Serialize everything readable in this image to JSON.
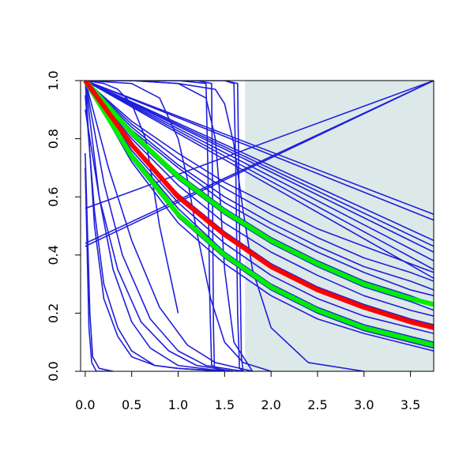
{
  "chart_data": {
    "type": "line",
    "title": "",
    "xlabel": "",
    "ylabel": "",
    "xlim": [
      -0.05,
      3.75
    ],
    "ylim": [
      0.0,
      1.0
    ],
    "grid": false,
    "legend": "none",
    "x_ticks": [
      "0.0",
      "0.5",
      "1.0",
      "1.5",
      "2.0",
      "2.5",
      "3.0",
      "3.5"
    ],
    "y_ticks": [
      "0.0",
      "0.2",
      "0.4",
      "0.6",
      "0.8",
      "1.0"
    ],
    "shaded_region": {
      "x": [
        1.72,
        3.75
      ],
      "y": [
        0.0,
        1.0
      ],
      "color": "#dde9e9"
    },
    "colors": {
      "blue": "#1f1fdd",
      "red": "#ff0000",
      "green": "#00ee00"
    },
    "series": [
      {
        "x": [
          0,
          3.75
        ],
        "y": [
          1.0,
          0.54
        ],
        "color": "#1f1fdd"
      },
      {
        "x": [
          0,
          3.75
        ],
        "y": [
          1.0,
          0.52
        ],
        "color": "#1f1fdd"
      },
      {
        "x": [
          0,
          3.75
        ],
        "y": [
          1.0,
          0.45
        ],
        "color": "#1f1fdd"
      },
      {
        "x": [
          0,
          3.75
        ],
        "y": [
          1.0,
          0.43
        ],
        "color": "#1f1fdd"
      },
      {
        "x": [
          0,
          3.75
        ],
        "y": [
          1.0,
          0.41
        ],
        "color": "#1f1fdd"
      },
      {
        "x": [
          0,
          3.75
        ],
        "y": [
          1.0,
          0.38
        ],
        "color": "#1f1fdd"
      },
      {
        "x": [
          0,
          3.75
        ],
        "y": [
          1.0,
          0.35
        ],
        "color": "#1f1fdd"
      },
      {
        "x": [
          0,
          3.75
        ],
        "y": [
          1.0,
          0.32
        ],
        "color": "#1f1fdd"
      },
      {
        "x": [
          0,
          3.75
        ],
        "y": [
          0.56,
          1.0
        ],
        "color": "#1f1fdd"
      },
      {
        "x": [
          0,
          3.75
        ],
        "y": [
          0.44,
          1.0
        ],
        "color": "#1f1fdd"
      },
      {
        "x": [
          0,
          3.75
        ],
        "y": [
          0.43,
          1.0
        ],
        "color": "#1f1fdd"
      },
      {
        "x": [
          0,
          0.5,
          1.0,
          1.5,
          2.0,
          2.5,
          3.0,
          3.5,
          3.75
        ],
        "y": [
          1.0,
          0.86,
          0.75,
          0.65,
          0.57,
          0.49,
          0.43,
          0.37,
          0.34
        ],
        "color": "#1f1fdd"
      },
      {
        "x": [
          0,
          0.5,
          1.0,
          1.5,
          2.0,
          2.5,
          3.0,
          3.5,
          3.75
        ],
        "y": [
          1.0,
          0.85,
          0.73,
          0.63,
          0.54,
          0.46,
          0.39,
          0.34,
          0.31
        ],
        "color": "#1f1fdd"
      },
      {
        "x": [
          0,
          0.5,
          1.0,
          1.5,
          2.0,
          2.5,
          3.0,
          3.5,
          3.75
        ],
        "y": [
          1.0,
          0.84,
          0.71,
          0.6,
          0.51,
          0.43,
          0.36,
          0.31,
          0.28
        ],
        "color": "#1f1fdd"
      },
      {
        "x": [
          0,
          0.5,
          1.0,
          1.5,
          2.0,
          2.5,
          3.0,
          3.5,
          3.75
        ],
        "y": [
          1.0,
          0.83,
          0.7,
          0.58,
          0.49,
          0.41,
          0.34,
          0.28,
          0.26
        ],
        "color": "#1f1fdd"
      },
      {
        "x": [
          0,
          0.5,
          1.0,
          1.5,
          2.0,
          2.5,
          3.0,
          3.5,
          3.75
        ],
        "y": [
          1.0,
          0.82,
          0.68,
          0.56,
          0.46,
          0.38,
          0.31,
          0.26,
          0.23
        ],
        "color": "#1f1fdd"
      },
      {
        "x": [
          0,
          0.5,
          1.0,
          1.5,
          2.0,
          2.5,
          3.0,
          3.5,
          3.75
        ],
        "y": [
          1.0,
          0.81,
          0.66,
          0.54,
          0.44,
          0.36,
          0.29,
          0.24,
          0.21
        ],
        "color": "#1f1fdd"
      },
      {
        "x": [
          0,
          0.5,
          1.0,
          1.5,
          2.0,
          2.5,
          3.0,
          3.5,
          3.75
        ],
        "y": [
          1.0,
          0.8,
          0.64,
          0.51,
          0.41,
          0.33,
          0.26,
          0.21,
          0.19
        ],
        "color": "#1f1fdd"
      },
      {
        "x": [
          0,
          0.5,
          1.0,
          1.5,
          2.0,
          2.5,
          3.0,
          3.5,
          3.75
        ],
        "y": [
          1.0,
          0.78,
          0.61,
          0.48,
          0.37,
          0.29,
          0.23,
          0.18,
          0.16
        ],
        "color": "#1f1fdd"
      },
      {
        "x": [
          0,
          0.5,
          1.0,
          1.5,
          2.0,
          2.5,
          3.0,
          3.5,
          3.75
        ],
        "y": [
          1.0,
          0.76,
          0.58,
          0.44,
          0.33,
          0.25,
          0.19,
          0.15,
          0.13
        ],
        "color": "#1f1fdd"
      },
      {
        "x": [
          0,
          0.5,
          1.0,
          1.5,
          2.0,
          2.5,
          3.0,
          3.5,
          3.75
        ],
        "y": [
          1.0,
          0.75,
          0.56,
          0.41,
          0.3,
          0.22,
          0.16,
          0.12,
          0.1
        ],
        "color": "#1f1fdd"
      },
      {
        "x": [
          0,
          0.5,
          1.0,
          1.5,
          2.0,
          2.5,
          3.0,
          3.5,
          3.75
        ],
        "y": [
          1.0,
          0.73,
          0.53,
          0.39,
          0.28,
          0.2,
          0.14,
          0.1,
          0.08
        ],
        "color": "#1f1fdd"
      },
      {
        "x": [
          0,
          0.5,
          1.0,
          1.5,
          2.0,
          2.5,
          3.0,
          3.5,
          3.75
        ],
        "y": [
          1.0,
          0.72,
          0.51,
          0.37,
          0.26,
          0.18,
          0.13,
          0.09,
          0.07
        ],
        "color": "#1f1fdd"
      },
      {
        "x": [
          0,
          0.5,
          1.0,
          1.5,
          2.0,
          2.5,
          3.0,
          3.5,
          3.75
        ],
        "y": [
          1.0,
          0.82,
          0.67,
          0.55,
          0.45,
          0.37,
          0.3,
          0.25,
          0.23
        ],
        "color": "#00ee00"
      },
      {
        "x": [
          0,
          0.5,
          1.0,
          1.5,
          2.0,
          2.5,
          3.0,
          3.5,
          3.75
        ],
        "y": [
          1.0,
          0.74,
          0.54,
          0.4,
          0.29,
          0.21,
          0.15,
          0.11,
          0.09
        ],
        "color": "#00ee00"
      },
      {
        "x": [
          0,
          0.5,
          1.0,
          1.5,
          2.0,
          2.5,
          3.0,
          3.5,
          3.75
        ],
        "y": [
          1.0,
          0.78,
          0.6,
          0.47,
          0.36,
          0.28,
          0.22,
          0.17,
          0.15
        ],
        "color": "#ff0000"
      },
      {
        "x": [
          0,
          0.1,
          0.2,
          0.35,
          0.5,
          0.75,
          1.0,
          1.5
        ],
        "y": [
          1.0,
          0.5,
          0.25,
          0.12,
          0.05,
          0.02,
          0.01,
          0.0
        ],
        "color": "#1f1fdd"
      },
      {
        "x": [
          0,
          0.1,
          0.2,
          0.35,
          0.5,
          0.75,
          1.0,
          1.5
        ],
        "y": [
          0.95,
          0.55,
          0.3,
          0.15,
          0.07,
          0.02,
          0.01,
          0.0
        ],
        "color": "#1f1fdd"
      },
      {
        "x": [
          0,
          0.15,
          0.3,
          0.5,
          0.7,
          1.0,
          1.5
        ],
        "y": [
          1.0,
          0.6,
          0.35,
          0.17,
          0.08,
          0.02,
          0.0
        ],
        "color": "#1f1fdd"
      },
      {
        "x": [
          0,
          0.15,
          0.35,
          0.6,
          0.9,
          1.2,
          1.6
        ],
        "y": [
          0.9,
          0.6,
          0.35,
          0.17,
          0.07,
          0.02,
          0.0
        ],
        "color": "#1f1fdd"
      },
      {
        "x": [
          0,
          0.2,
          0.4,
          0.7,
          1.0,
          1.3,
          1.7
        ],
        "y": [
          1.0,
          0.65,
          0.4,
          0.18,
          0.07,
          0.02,
          0.0
        ],
        "color": "#1f1fdd"
      },
      {
        "x": [
          0,
          0.25,
          0.5,
          0.8,
          1.1,
          1.4,
          1.8
        ],
        "y": [
          1.0,
          0.7,
          0.45,
          0.22,
          0.09,
          0.03,
          0.0
        ],
        "color": "#1f1fdd"
      },
      {
        "x": [
          0,
          0.05,
          0.08,
          0.15,
          0.3
        ],
        "y": [
          0.75,
          0.2,
          0.05,
          0.01,
          0.0
        ],
        "color": "#1f1fdd"
      },
      {
        "x": [
          0,
          0.04,
          0.07,
          0.12,
          0.25
        ],
        "y": [
          0.7,
          0.15,
          0.03,
          0.0,
          0.0
        ],
        "color": "#1f1fdd"
      },
      {
        "x": [
          0,
          0.2,
          0.35,
          0.5,
          0.65,
          0.8,
          1.0
        ],
        "y": [
          1.0,
          0.99,
          0.97,
          0.92,
          0.8,
          0.5,
          0.2
        ],
        "color": "#1f1fdd"
      },
      {
        "x": [
          0,
          0.5,
          0.8,
          1.0,
          1.1,
          1.2,
          1.35,
          1.5,
          1.7,
          2.0
        ],
        "y": [
          1.0,
          0.99,
          0.94,
          0.8,
          0.66,
          0.48,
          0.25,
          0.1,
          0.03,
          0.0
        ],
        "color": "#1f1fdd"
      },
      {
        "x": [
          0,
          0.5,
          1.0,
          1.3,
          1.4,
          1.45,
          1.5,
          1.6,
          1.8
        ],
        "y": [
          1.0,
          1.0,
          0.99,
          0.94,
          0.8,
          0.6,
          0.35,
          0.1,
          0.0
        ],
        "color": "#1f1fdd"
      },
      {
        "x": [
          0,
          0.5,
          1.0,
          1.4,
          1.5,
          1.6,
          1.7,
          1.8,
          2.0,
          2.4,
          3.0
        ],
        "y": [
          1.0,
          1.0,
          0.99,
          0.97,
          0.92,
          0.78,
          0.55,
          0.35,
          0.15,
          0.03,
          0.0
        ],
        "color": "#1f1fdd"
      },
      {
        "x": [
          0,
          1.0,
          1.3,
          1.32,
          1.34,
          1.36,
          1.5
        ],
        "y": [
          1.0,
          1.0,
          0.99,
          0.7,
          0.25,
          0.02,
          0.0
        ],
        "color": "#1f1fdd"
      },
      {
        "x": [
          0,
          1.2,
          1.36,
          1.37,
          1.38,
          1.39,
          1.5
        ],
        "y": [
          1.0,
          1.0,
          0.99,
          0.6,
          0.15,
          0.01,
          0.0
        ],
        "color": "#1f1fdd"
      },
      {
        "x": [
          0,
          1.5,
          1.6,
          1.62,
          1.64,
          1.66,
          1.7
        ],
        "y": [
          1.0,
          1.0,
          0.99,
          0.7,
          0.2,
          0.01,
          0.0
        ],
        "color": "#1f1fdd"
      },
      {
        "x": [
          0,
          1.5,
          1.64,
          1.66,
          1.68,
          1.7
        ],
        "y": [
          1.0,
          1.0,
          0.99,
          0.5,
          0.05,
          0.0
        ],
        "color": "#1f1fdd"
      }
    ]
  }
}
